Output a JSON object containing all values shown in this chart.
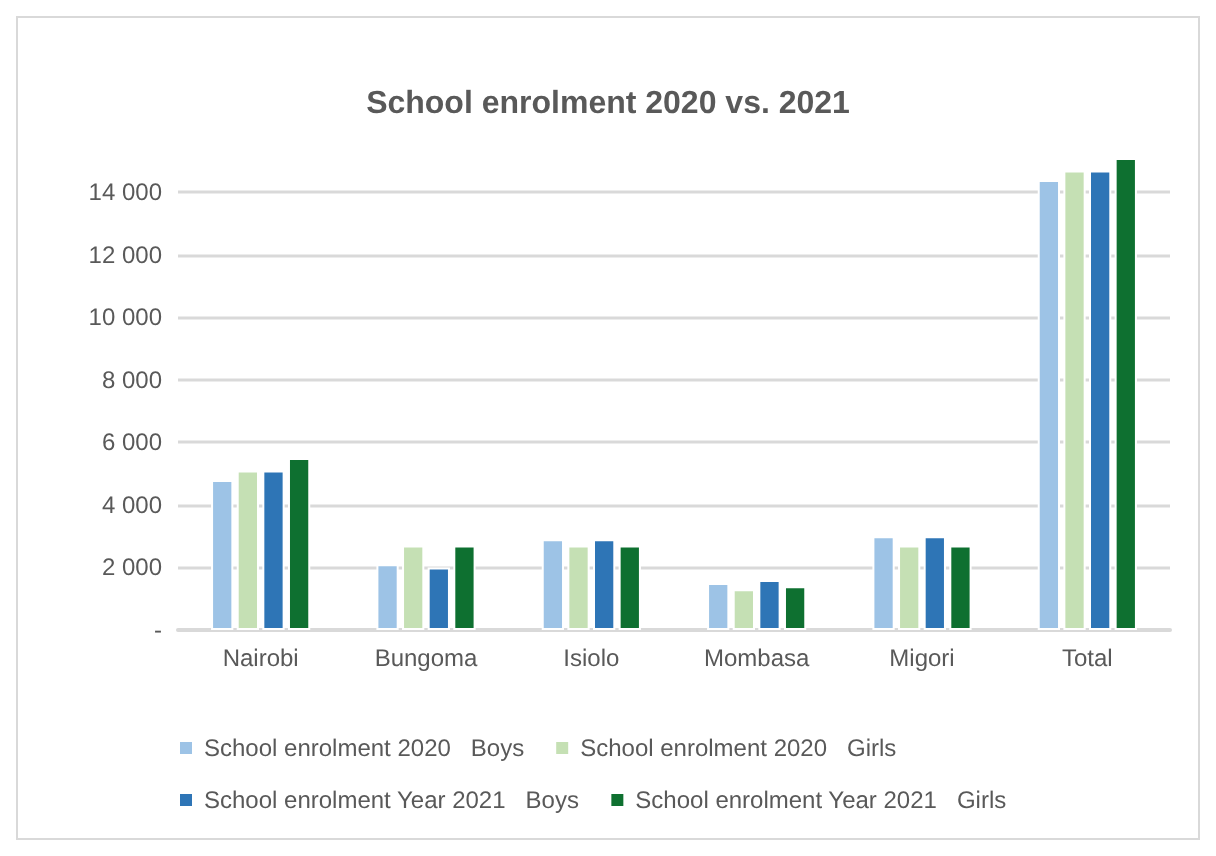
{
  "chart_data": {
    "type": "bar",
    "title": "School enrolment 2020 vs. 2021",
    "categories": [
      "Nairobi",
      "Bungoma",
      "Isiolo",
      "Mombasa",
      "Migori",
      "Total"
    ],
    "series": [
      {
        "name": "School enrolment 2020   Boys",
        "color": "#9dc3e6",
        "values": [
          4800,
          2100,
          2900,
          1500,
          3000,
          14400
        ]
      },
      {
        "name": "School enrolment 2020   Girls",
        "color": "#c5e0b4",
        "values": [
          5100,
          2700,
          2700,
          1300,
          2700,
          14700
        ]
      },
      {
        "name": "School enrolment Year 2021   Boys",
        "color": "#2e75b6",
        "values": [
          5100,
          2000,
          2900,
          1600,
          3000,
          14700
        ]
      },
      {
        "name": "School enrolment Year 2021   Girls",
        "color": "#0e7030",
        "values": [
          5500,
          2700,
          2700,
          1400,
          2700,
          15100
        ]
      }
    ],
    "ylim": [
      0,
      15100
    ],
    "yticks": [
      {
        "value": 0,
        "label": "-"
      },
      {
        "value": 2000,
        "label": "2 000"
      },
      {
        "value": 4000,
        "label": "4 000"
      },
      {
        "value": 6000,
        "label": "6 000"
      },
      {
        "value": 8000,
        "label": "8 000"
      },
      {
        "value": 10000,
        "label": "10 000"
      },
      {
        "value": 12000,
        "label": "12 000"
      },
      {
        "value": 14000,
        "label": "14 000"
      }
    ],
    "grid": "y",
    "legend": "bottom"
  }
}
